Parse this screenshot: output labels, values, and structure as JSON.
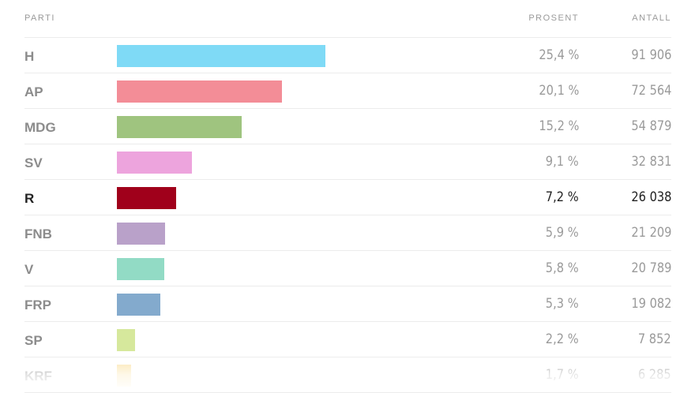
{
  "header": {
    "party": "PARTI",
    "percent": "PROSENT",
    "count": "ANTALL"
  },
  "chart_data": {
    "type": "bar",
    "orientation": "horizontal",
    "categories": [
      "H",
      "AP",
      "MDG",
      "SV",
      "R",
      "FNB",
      "V",
      "FRP",
      "SP",
      "KRF"
    ],
    "values": [
      25.4,
      20.1,
      15.2,
      9.1,
      7.2,
      5.9,
      5.8,
      5.3,
      2.2,
      1.7
    ],
    "percent_labels": [
      "25,4 %",
      "20,1 %",
      "15,2 %",
      "9,1 %",
      "7,2 %",
      "5,9 %",
      "5,8 %",
      "5,3 %",
      "2,2 %",
      "1,7 %"
    ],
    "count_labels": [
      "91 906",
      "72 564",
      "54 879",
      "32 831",
      "26 038",
      "21 209",
      "20 789",
      "19 082",
      "7 852",
      "6 285"
    ],
    "colors": [
      "#7fdaf6",
      "#f38d97",
      "#9fc47f",
      "#eda4dd",
      "#a0001b",
      "#b9a1c9",
      "#92dbc5",
      "#83aacd",
      "#d6e89c",
      "#fbe3a6"
    ],
    "highlighted": "R",
    "max_value": 25.4
  }
}
